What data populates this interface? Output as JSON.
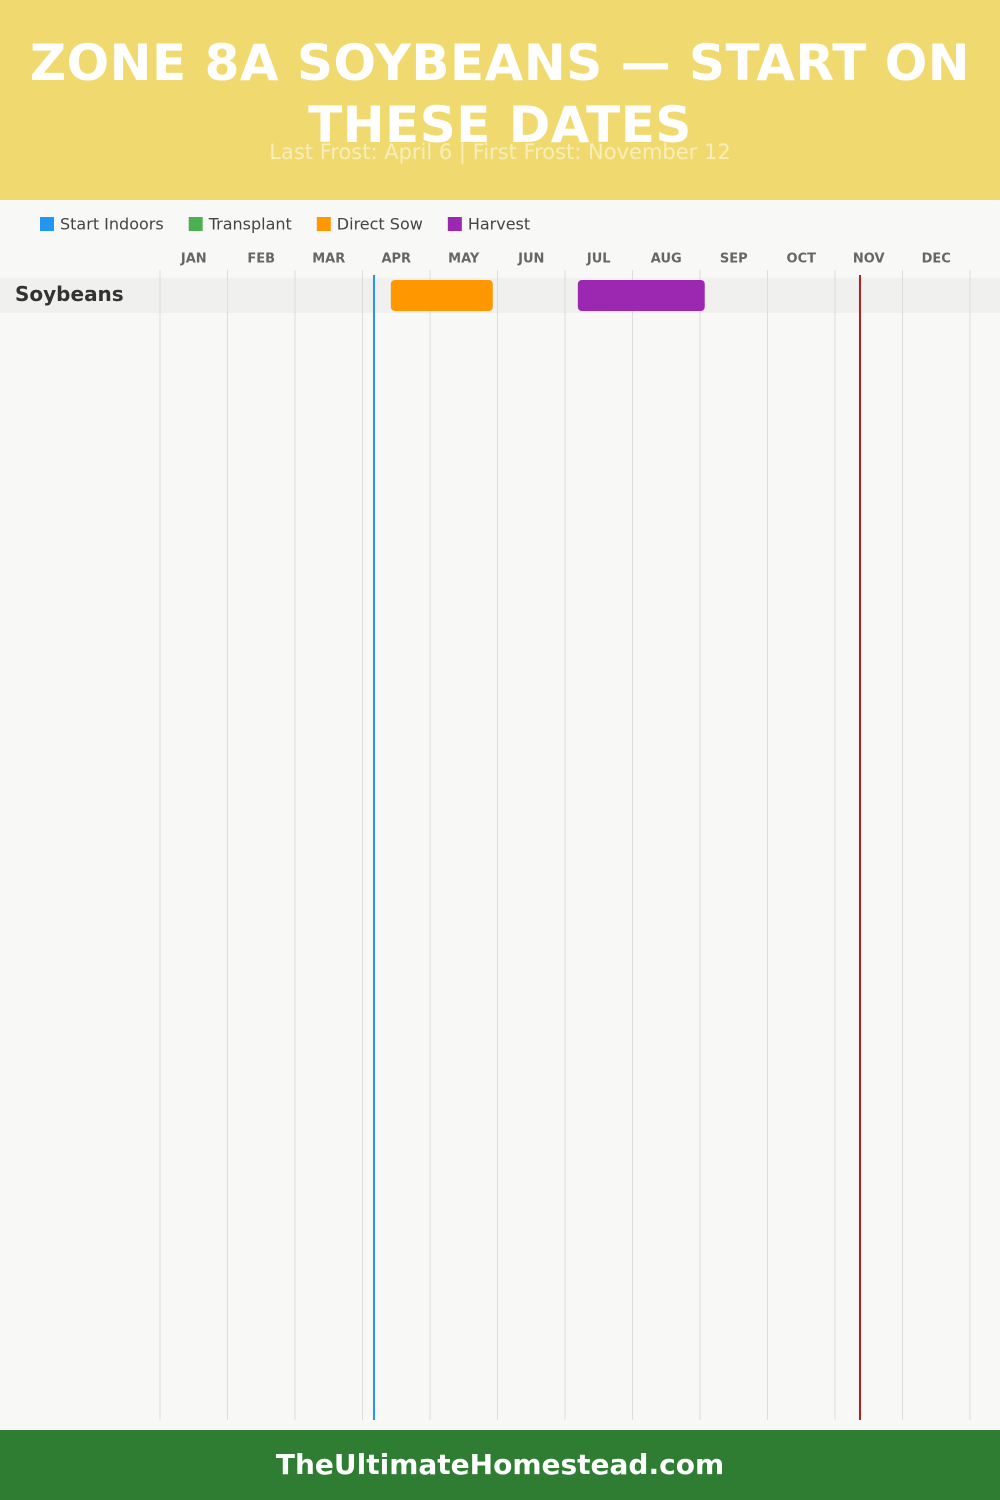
{
  "chart_data": {
    "type": "gantt",
    "title": "ZONE 8A SOYBEANS — START ON THESE DATES",
    "subtitle": "Last Frost: April 6 | First Frost: November 12",
    "months": [
      "JAN",
      "FEB",
      "MAR",
      "APR",
      "MAY",
      "JUN",
      "JUL",
      "AUG",
      "SEP",
      "OCT",
      "NOV",
      "DEC"
    ],
    "xlim": [
      0,
      12
    ],
    "categories": [
      "Soybeans"
    ],
    "legend": "top-left",
    "series": [
      {
        "name": "Start Indoors",
        "color": "#2196f3",
        "start": [
          null
        ],
        "end": [
          null
        ]
      },
      {
        "name": "Transplant",
        "color": "#4caf50",
        "start": [
          null
        ],
        "end": [
          null
        ]
      },
      {
        "name": "Direct Sow",
        "color": "#ff9800",
        "start": [
          3.42
        ],
        "end": [
          4.93
        ]
      },
      {
        "name": "Harvest",
        "color": "#9c27b0",
        "start": [
          6.19
        ],
        "end": [
          8.07
        ]
      }
    ],
    "frost_lines": [
      {
        "value": 3.17,
        "color": "#2196f3"
      },
      {
        "value": 10.37,
        "color": "#b71c1c"
      }
    ]
  },
  "footer": {
    "text": "TheUltimateHomestead.com"
  }
}
